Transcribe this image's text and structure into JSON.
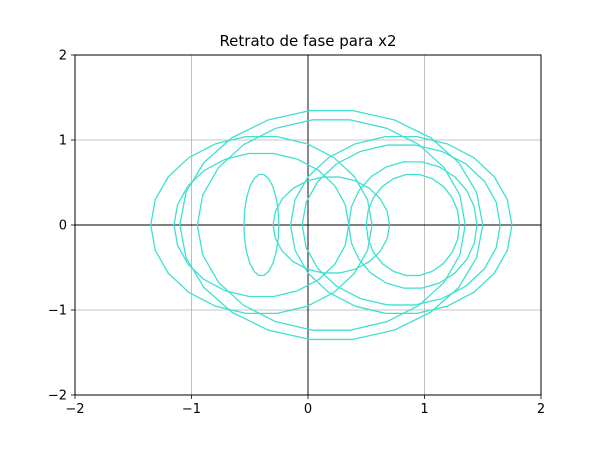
{
  "chart_data": {
    "type": "line",
    "title": "Retrato de fase para x2",
    "xlabel": "",
    "ylabel": "",
    "xlim": [
      -2,
      2
    ],
    "ylim": [
      -2,
      2
    ],
    "xticks": [
      -2,
      -1,
      0,
      1,
      2
    ],
    "yticks": [
      -2,
      -1,
      0,
      1,
      2
    ],
    "xtick_labels": [
      "−2",
      "−1",
      "0",
      "1",
      "2"
    ],
    "ytick_labels": [
      "−2",
      "−1",
      "0",
      "1",
      "2"
    ],
    "grid": true,
    "zero_axes": true,
    "line_color": "#40e0d0",
    "series": [
      {
        "center": [
          -0.4,
          0
        ],
        "radii": [
          0.15,
          0.6
        ]
      },
      {
        "center": [
          -0.4,
          0
        ],
        "radii": [
          0.75,
          0.85
        ]
      },
      {
        "center": [
          -0.4,
          0
        ],
        "radii": [
          0.95,
          1.05
        ]
      },
      {
        "center": [
          0.2,
          0
        ],
        "radii": [
          0.5,
          0.57
        ]
      },
      {
        "center": [
          0.2,
          0
        ],
        "radii": [
          1.15,
          1.25
        ]
      },
      {
        "center": [
          0.2,
          0
        ],
        "radii": [
          1.3,
          1.36
        ]
      },
      {
        "center": [
          0.9,
          0
        ],
        "radii": [
          0.4,
          0.6
        ]
      },
      {
        "center": [
          0.9,
          0
        ],
        "radii": [
          0.55,
          0.75
        ]
      },
      {
        "center": [
          0.8,
          0
        ],
        "radii": [
          0.85,
          0.95
        ]
      },
      {
        "center": [
          0.8,
          0
        ],
        "radii": [
          0.95,
          1.05
        ]
      }
    ]
  }
}
